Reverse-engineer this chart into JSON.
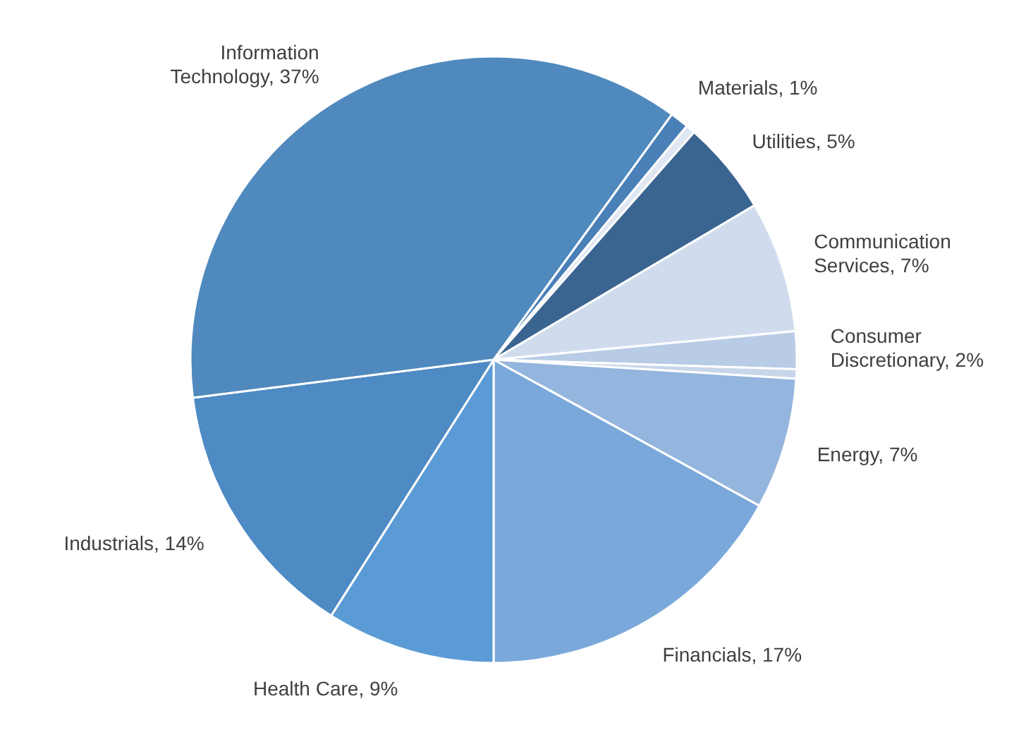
{
  "chart_data": {
    "type": "pie",
    "categories": [
      "Materials",
      null,
      "Utilities",
      "Communication Services",
      "Consumer Discretionary",
      null,
      "Energy",
      "Financials",
      "Health Care",
      "Industrials",
      "Information Technology"
    ],
    "values": [
      1,
      0.5,
      5,
      7,
      2,
      0.5,
      7,
      17,
      9,
      14,
      37
    ],
    "value_labels": [
      "1%",
      null,
      "5%",
      "7%",
      "2%",
      null,
      "7%",
      "17%",
      "9%",
      "14%",
      "37%"
    ],
    "colors": [
      "#4a80b8",
      "#dfe7f2",
      "#3b6591",
      "#d0dcee",
      "#b8cce6",
      "#c8d6ea",
      "#94b5dd",
      "#7aa8da",
      "#5b9bd5",
      "#4e8ac4",
      "#4f89bd"
    ]
  }
}
